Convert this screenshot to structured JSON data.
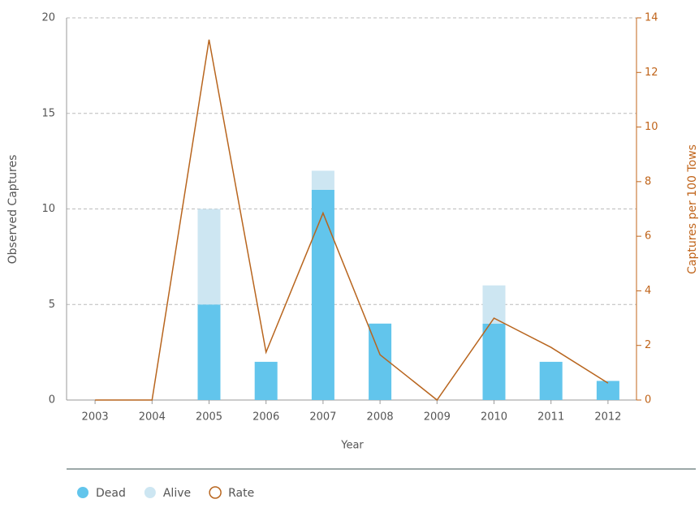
{
  "chart_data": {
    "type": "bar",
    "categories": [
      "2003",
      "2004",
      "2005",
      "2006",
      "2007",
      "2008",
      "2009",
      "2010",
      "2011",
      "2012"
    ],
    "series": [
      {
        "name": "Dead",
        "color": "#62c5ec",
        "values": [
          0,
          0,
          5,
          2,
          11,
          4,
          0,
          4,
          2,
          1
        ]
      },
      {
        "name": "Alive",
        "color": "#cde6f2",
        "values": [
          0,
          0,
          5,
          0,
          1,
          0,
          0,
          2,
          0,
          0
        ]
      },
      {
        "name": "Rate",
        "color": "#b8651e",
        "type": "line",
        "axis": "y2",
        "values": [
          0,
          0,
          13.2,
          1.75,
          6.85,
          1.66,
          0,
          3.0,
          1.93,
          0.62
        ]
      }
    ],
    "stacked": true,
    "xlabel": "Year",
    "ylabel": "Observed Captures",
    "y2label": "Captures per 100 Tows",
    "ylim": [
      0,
      20
    ],
    "yticks": [
      0,
      5,
      10,
      15,
      20
    ],
    "y2lim": [
      0,
      14
    ],
    "y2ticks": [
      0,
      2,
      4,
      6,
      8,
      10,
      12,
      14
    ],
    "grid": true,
    "legend": "bottom-left"
  }
}
